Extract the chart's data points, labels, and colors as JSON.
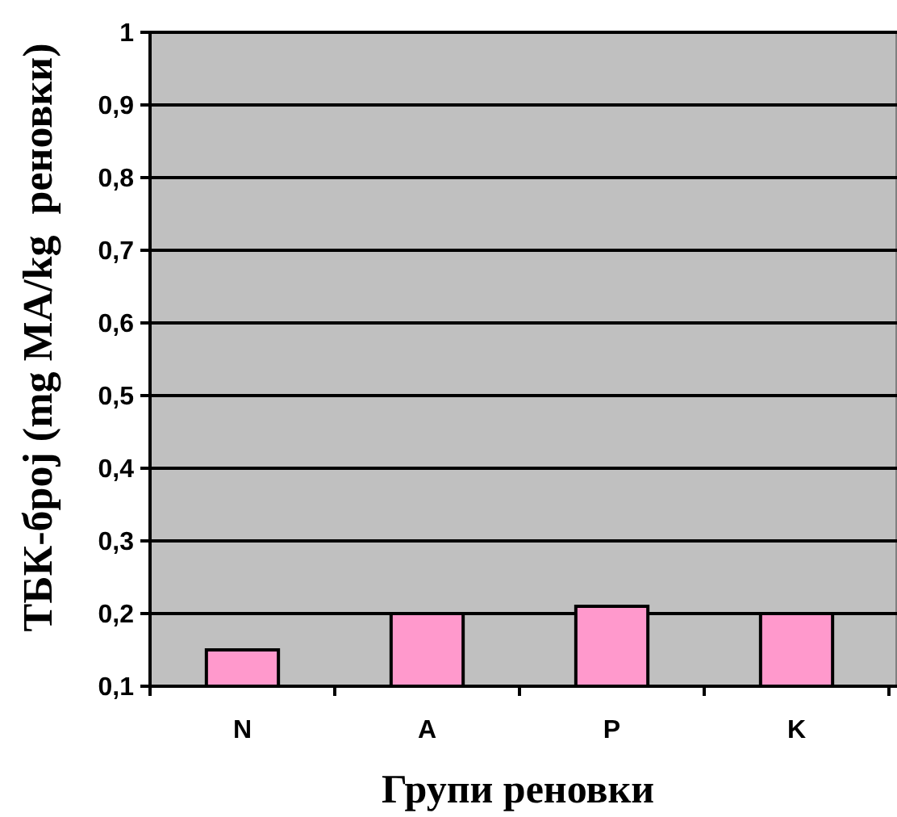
{
  "chart_data": {
    "type": "bar",
    "categories": [
      "N",
      "A",
      "P",
      "K"
    ],
    "values": [
      0.15,
      0.2,
      0.21,
      0.2
    ],
    "color": "#ff99cc",
    "ylim": [
      0.1,
      1
    ],
    "yticks": [
      {
        "value": 0.1,
        "label": "0,1"
      },
      {
        "value": 0.2,
        "label": "0,2"
      },
      {
        "value": 0.3,
        "label": "0,3"
      },
      {
        "value": 0.4,
        "label": "0,4"
      },
      {
        "value": 0.5,
        "label": "0,5"
      },
      {
        "value": 0.6,
        "label": "0,6"
      },
      {
        "value": 0.7,
        "label": "0,7"
      },
      {
        "value": 0.8,
        "label": "0,8"
      },
      {
        "value": 0.9,
        "label": "0,9"
      },
      1
    ],
    "grid": "y",
    "xlabel": "Групи реновки",
    "ylabel": "ТБК-број (mg MA/kg  реновки)"
  }
}
